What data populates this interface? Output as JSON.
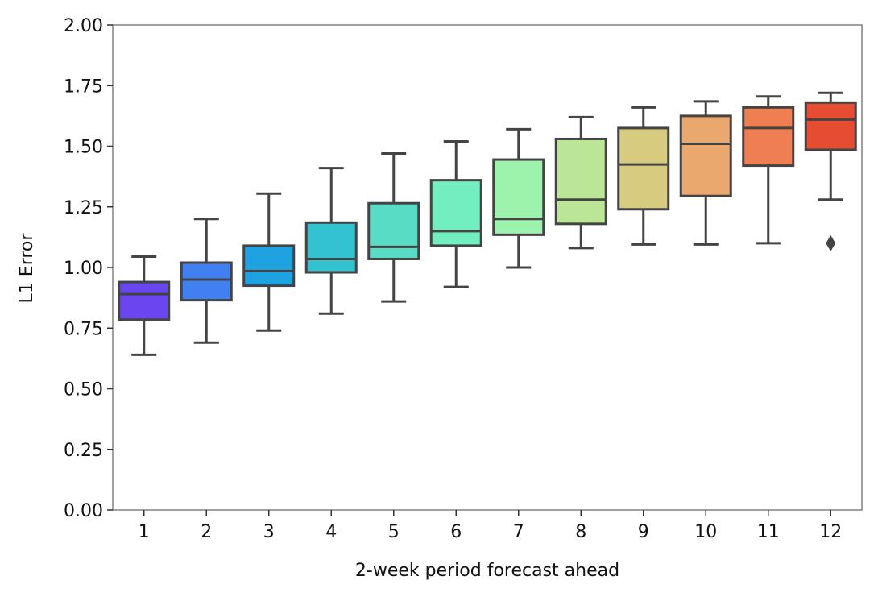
{
  "chart_data": {
    "type": "box",
    "xlabel": "2-week period forecast ahead",
    "ylabel": "L1 Error",
    "ylim": [
      0,
      2.0
    ],
    "yticks": [
      "0.00",
      "0.25",
      "0.50",
      "0.75",
      "1.00",
      "1.25",
      "1.50",
      "1.75",
      "2.00"
    ],
    "grid": false,
    "categories": [
      "1",
      "2",
      "3",
      "4",
      "5",
      "6",
      "7",
      "8",
      "9",
      "10",
      "11",
      "12"
    ],
    "boxes": [
      {
        "category": "1",
        "whisker_low": 0.64,
        "q1": 0.785,
        "median": 0.89,
        "q3": 0.94,
        "whisker_high": 1.045,
        "outliers": [],
        "color": "#6a46f0"
      },
      {
        "category": "2",
        "whisker_low": 0.69,
        "q1": 0.865,
        "median": 0.95,
        "q3": 1.02,
        "whisker_high": 1.2,
        "outliers": [],
        "color": "#4180f0"
      },
      {
        "category": "3",
        "whisker_low": 0.74,
        "q1": 0.925,
        "median": 0.985,
        "q3": 1.09,
        "whisker_high": 1.305,
        "outliers": [],
        "color": "#1fa2e0"
      },
      {
        "category": "4",
        "whisker_low": 0.81,
        "q1": 0.98,
        "median": 1.035,
        "q3": 1.185,
        "whisker_high": 1.41,
        "outliers": [],
        "color": "#32c2d0"
      },
      {
        "category": "5",
        "whisker_low": 0.86,
        "q1": 1.035,
        "median": 1.085,
        "q3": 1.265,
        "whisker_high": 1.47,
        "outliers": [],
        "color": "#58dcc6"
      },
      {
        "category": "6",
        "whisker_low": 0.92,
        "q1": 1.09,
        "median": 1.15,
        "q3": 1.36,
        "whisker_high": 1.52,
        "outliers": [],
        "color": "#72eec1"
      },
      {
        "category": "7",
        "whisker_low": 1.0,
        "q1": 1.135,
        "median": 1.2,
        "q3": 1.445,
        "whisker_high": 1.57,
        "outliers": [],
        "color": "#9ef3ac"
      },
      {
        "category": "8",
        "whisker_low": 1.08,
        "q1": 1.18,
        "median": 1.28,
        "q3": 1.53,
        "whisker_high": 1.62,
        "outliers": [],
        "color": "#bbe698"
      },
      {
        "category": "9",
        "whisker_low": 1.095,
        "q1": 1.24,
        "median": 1.425,
        "q3": 1.575,
        "whisker_high": 1.66,
        "outliers": [],
        "color": "#d6cb7f"
      },
      {
        "category": "10",
        "whisker_low": 1.095,
        "q1": 1.295,
        "median": 1.51,
        "q3": 1.625,
        "whisker_high": 1.685,
        "outliers": [],
        "color": "#eba86e"
      },
      {
        "category": "11",
        "whisker_low": 1.1,
        "q1": 1.42,
        "median": 1.575,
        "q3": 1.66,
        "whisker_high": 1.705,
        "outliers": [],
        "color": "#ef7f52"
      },
      {
        "category": "12",
        "whisker_low": 1.28,
        "q1": 1.485,
        "median": 1.61,
        "q3": 1.68,
        "whisker_high": 1.72,
        "outliers": [
          1.1
        ],
        "color": "#e64c32"
      }
    ],
    "colors": {
      "line": "#444444",
      "spine": "#808080",
      "text": "#111111"
    }
  }
}
